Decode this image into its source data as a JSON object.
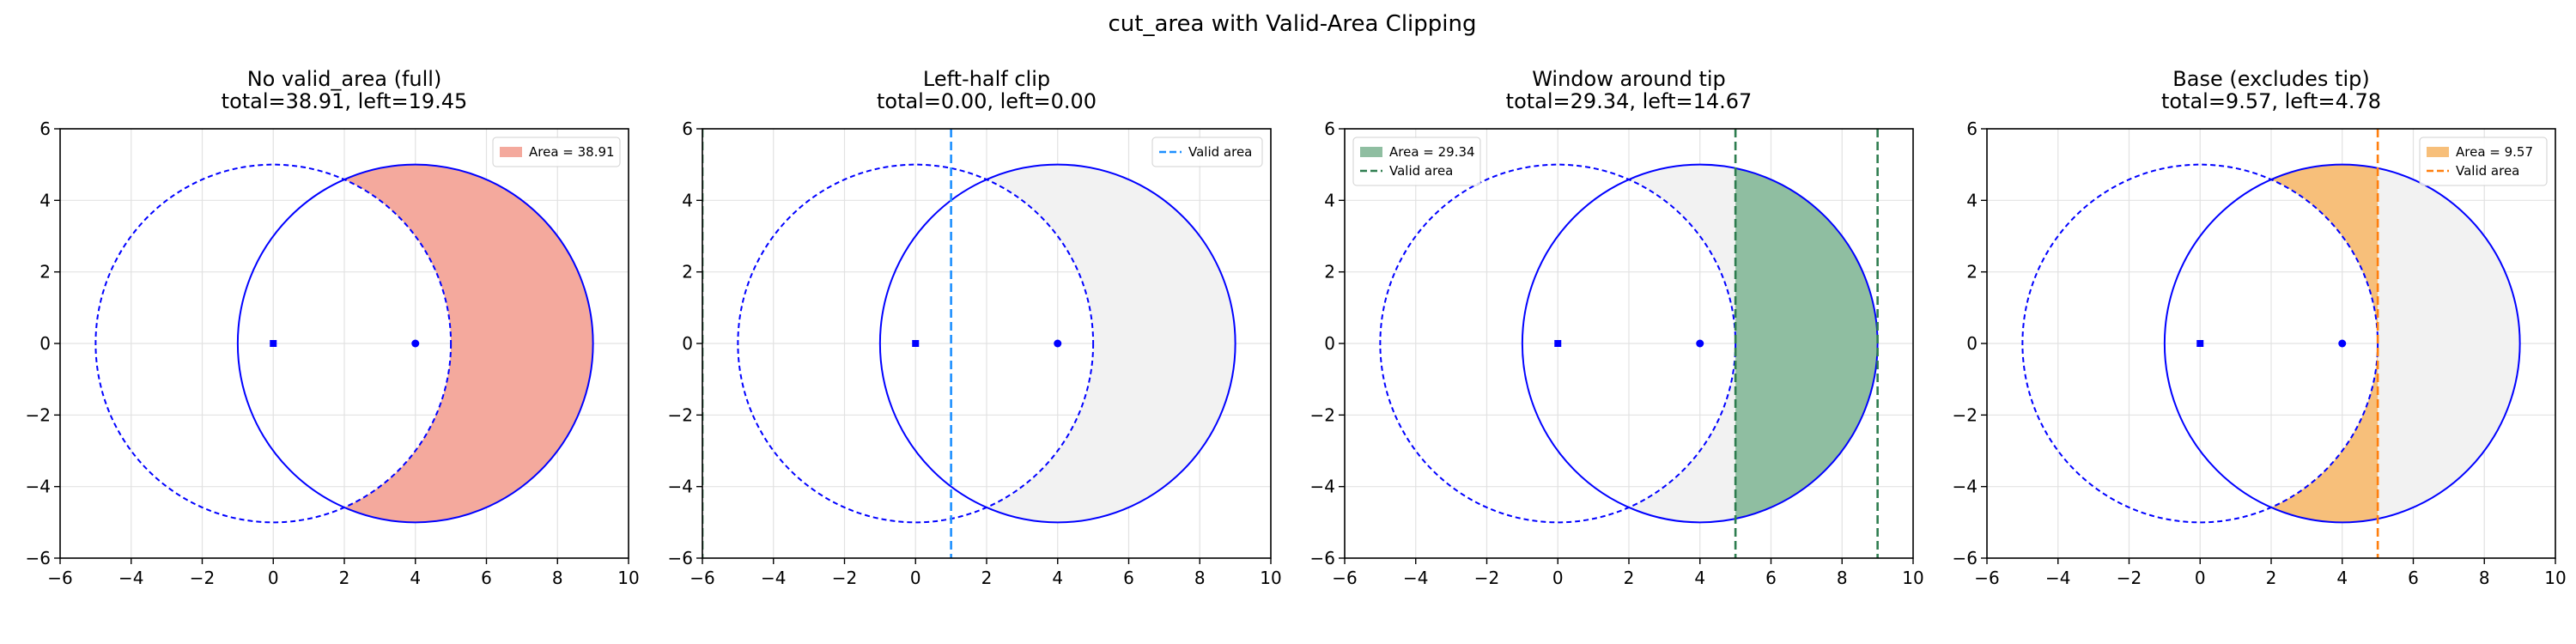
{
  "figure_title": "cut_area with Valid-Area Clipping",
  "chart_data": [
    {
      "type": "area",
      "title_lines": [
        "No valid_area (full)",
        "total=38.91, left=19.45"
      ],
      "xlim": [
        -6,
        10
      ],
      "ylim": [
        -6,
        6
      ],
      "xticks": [
        -6,
        -4,
        -2,
        0,
        2,
        4,
        6,
        8,
        10
      ],
      "yticks": [
        -6,
        -4,
        -2,
        0,
        2,
        4,
        6
      ],
      "grid": true,
      "circles": [
        {
          "role": "cutter",
          "cx": 0,
          "cy": 0,
          "r": 5,
          "style": "dashed",
          "color": "#0000ff"
        },
        {
          "role": "target",
          "cx": 4,
          "cy": 0,
          "r": 5,
          "style": "solid",
          "color": "#0000ff"
        }
      ],
      "centers": [
        {
          "x": 0,
          "y": 0,
          "marker": "square"
        },
        {
          "x": 4,
          "y": 0,
          "marker": "circle"
        }
      ],
      "valid_area": null,
      "fill": {
        "region": "crescent",
        "xmin": null,
        "xmax": null,
        "color": "#f4a99d"
      },
      "legend": {
        "placement": "top-right",
        "entries": [
          {
            "label": "Area = 38.91",
            "kind": "patch",
            "color": "#f4a99d"
          }
        ]
      }
    },
    {
      "type": "area",
      "title_lines": [
        "Left-half clip",
        "total=0.00, left=0.00"
      ],
      "xlim": [
        -6,
        10
      ],
      "ylim": [
        -6,
        6
      ],
      "xticks": [
        -6,
        -4,
        -2,
        0,
        2,
        4,
        6,
        8,
        10
      ],
      "yticks": [
        -6,
        -4,
        -2,
        0,
        2,
        4,
        6
      ],
      "grid": true,
      "circles": [
        {
          "role": "cutter",
          "cx": 0,
          "cy": 0,
          "r": 5,
          "style": "dashed",
          "color": "#0000ff"
        },
        {
          "role": "target",
          "cx": 4,
          "cy": 0,
          "r": 5,
          "style": "solid",
          "color": "#0000ff"
        }
      ],
      "centers": [
        {
          "x": 0,
          "y": 0,
          "marker": "square"
        },
        {
          "x": 4,
          "y": 0,
          "marker": "circle"
        }
      ],
      "crescent_background": "#f2f2f2",
      "valid_area": {
        "xmin": -6,
        "xmax": 1,
        "lines": [
          {
            "x": 1,
            "color": "#1e90ff"
          },
          {
            "x": -6,
            "color": "#2e7d4f"
          }
        ]
      },
      "fill": null,
      "legend": {
        "placement": "top-right",
        "entries": [
          {
            "label": "Valid area",
            "kind": "line",
            "color": "#1e90ff"
          }
        ]
      }
    },
    {
      "type": "area",
      "title_lines": [
        "Window around tip",
        "total=29.34, left=14.67"
      ],
      "xlim": [
        -6,
        10
      ],
      "ylim": [
        -6,
        6
      ],
      "xticks": [
        -6,
        -4,
        -2,
        0,
        2,
        4,
        6,
        8,
        10
      ],
      "yticks": [
        -6,
        -4,
        -2,
        0,
        2,
        4,
        6
      ],
      "grid": true,
      "circles": [
        {
          "role": "cutter",
          "cx": 0,
          "cy": 0,
          "r": 5,
          "style": "dashed",
          "color": "#0000ff"
        },
        {
          "role": "target",
          "cx": 4,
          "cy": 0,
          "r": 5,
          "style": "solid",
          "color": "#0000ff"
        }
      ],
      "centers": [
        {
          "x": 0,
          "y": 0,
          "marker": "square"
        },
        {
          "x": 4,
          "y": 0,
          "marker": "circle"
        }
      ],
      "crescent_background": "#f2f2f2",
      "valid_area": {
        "xmin": 5,
        "xmax": 9,
        "lines": [
          {
            "x": 5,
            "color": "#2e7d4f"
          },
          {
            "x": 9,
            "color": "#2e7d4f"
          }
        ]
      },
      "fill": {
        "region": "crescent",
        "xmin": 5,
        "xmax": 9,
        "color": "#8fbea1"
      },
      "legend": {
        "placement": "top-left",
        "entries": [
          {
            "label": "Area = 29.34",
            "kind": "patch",
            "color": "#8fbea1"
          },
          {
            "label": "Valid area",
            "kind": "line",
            "color": "#2e7d4f"
          }
        ]
      }
    },
    {
      "type": "area",
      "title_lines": [
        "Base (excludes tip)",
        "total=9.57, left=4.78"
      ],
      "xlim": [
        -6,
        10
      ],
      "ylim": [
        -6,
        6
      ],
      "xticks": [
        -6,
        -4,
        -2,
        0,
        2,
        4,
        6,
        8,
        10
      ],
      "yticks": [
        -6,
        -4,
        -2,
        0,
        2,
        4,
        6
      ],
      "grid": true,
      "circles": [
        {
          "role": "cutter",
          "cx": 0,
          "cy": 0,
          "r": 5,
          "style": "dashed",
          "color": "#0000ff"
        },
        {
          "role": "target",
          "cx": 4,
          "cy": 0,
          "r": 5,
          "style": "solid",
          "color": "#0000ff"
        }
      ],
      "centers": [
        {
          "x": 0,
          "y": 0,
          "marker": "square"
        },
        {
          "x": 4,
          "y": 0,
          "marker": "circle"
        }
      ],
      "crescent_background": "#f2f2f2",
      "valid_area": {
        "xmin": -6,
        "xmax": 5,
        "lines": [
          {
            "x": 5,
            "color": "#ff7f0e"
          }
        ]
      },
      "fill": {
        "region": "crescent",
        "xmin": -6,
        "xmax": 5,
        "color": "#f7bf7a"
      },
      "legend": {
        "placement": "top-right",
        "entries": [
          {
            "label": "Area = 9.57",
            "kind": "patch",
            "color": "#f7bf7a"
          },
          {
            "label": "Valid area",
            "kind": "line",
            "color": "#ff7f0e"
          }
        ]
      }
    }
  ]
}
